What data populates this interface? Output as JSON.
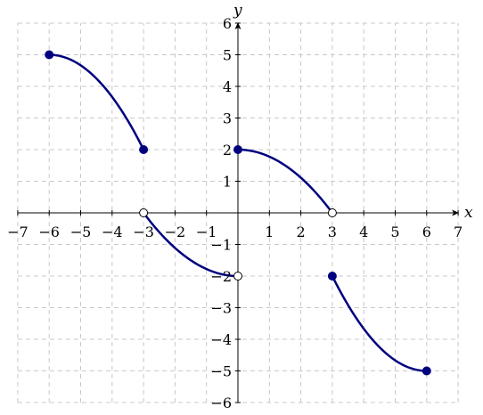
{
  "chart_data": {
    "type": "line",
    "xlabel": "x",
    "ylabel": "y",
    "xlim": [
      -7,
      7
    ],
    "ylim": [
      -6,
      6
    ],
    "grid": true,
    "grid_style": "dashed",
    "colors": {
      "curve": "#00007f",
      "grid": "#c8c8c8",
      "axis": "#000000"
    },
    "xticks": [
      "−7",
      "−6",
      "−5",
      "−4",
      "−3",
      "−2",
      "−1",
      "1",
      "2",
      "3",
      "4",
      "5",
      "6",
      "7"
    ],
    "yticks": [
      "−6",
      "−5",
      "−4",
      "−3",
      "−2",
      "−1",
      "1",
      "2",
      "3",
      "4",
      "5",
      "6"
    ],
    "series": [
      {
        "x": [
          -6,
          -5.5,
          -5,
          -4.5,
          -4,
          -3.5,
          -3
        ],
        "y": [
          5,
          4.89,
          4.56,
          4.0,
          3.22,
          2.22,
          2
        ],
        "shape": "concave-down",
        "start": "filled",
        "end": "filled"
      },
      {
        "x": [
          -3,
          -2.5,
          -2,
          -1.5,
          -1,
          -0.5,
          0
        ],
        "y": [
          0,
          -0.62,
          -1.11,
          -1.5,
          -1.78,
          -1.94,
          -2
        ],
        "shape": "concave-up",
        "start": "open",
        "end": "open"
      },
      {
        "x": [
          0,
          0.5,
          1,
          1.5,
          2,
          2.5,
          3
        ],
        "y": [
          2,
          1.94,
          1.78,
          1.5,
          1.11,
          0.61,
          0
        ],
        "shape": "concave-down",
        "start": "filled",
        "end": "open"
      },
      {
        "x": [
          3,
          3.5,
          4,
          4.5,
          5,
          5.5,
          6
        ],
        "y": [
          -2,
          -2.92,
          -3.67,
          -4.25,
          -4.67,
          -4.92,
          -5
        ],
        "shape": "concave-up",
        "start": "filled",
        "end": "filled"
      }
    ]
  }
}
